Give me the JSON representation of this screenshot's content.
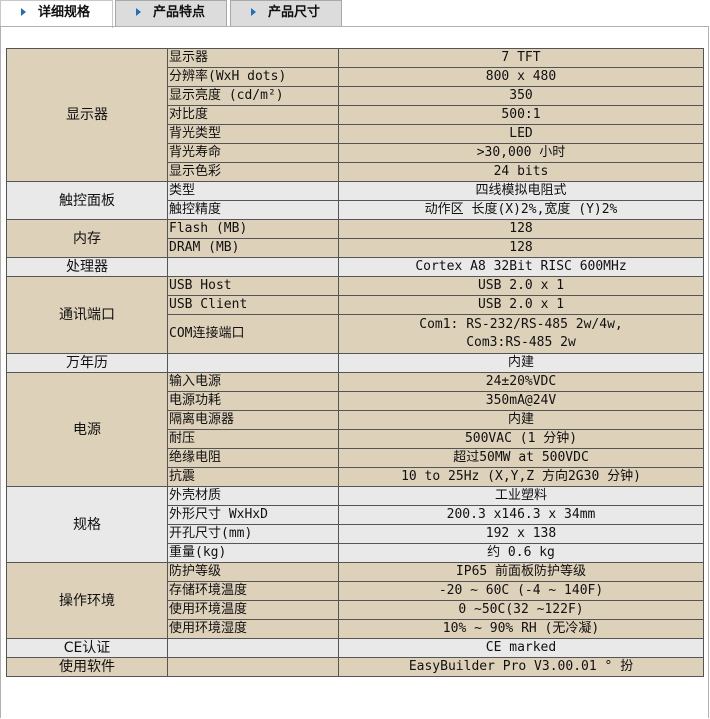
{
  "tabs": [
    {
      "label": "详细规格",
      "active": true
    },
    {
      "label": "产品特点",
      "active": false
    },
    {
      "label": "产品尺寸",
      "active": false
    }
  ],
  "colors": {
    "tan": "#ddd1ba",
    "gray": "#e9e9e9",
    "tab_arrow": "#1f6fbf"
  },
  "groups": [
    {
      "name": "显示器",
      "shade": "tan",
      "rows": [
        [
          "显示器",
          "7 TFT"
        ],
        [
          "分辨率(WxH dots)",
          "800 x 480"
        ],
        [
          "显示亮度 (cd/m²)",
          "350"
        ],
        [
          "对比度",
          "500:1"
        ],
        [
          "背光类型",
          "LED"
        ],
        [
          "背光寿命",
          ">30,000 小时"
        ],
        [
          "显示色彩",
          "24 bits"
        ]
      ]
    },
    {
      "name": "触控面板",
      "shade": "gray",
      "rows": [
        [
          "类型",
          "四线模拟电阻式"
        ],
        [
          "触控精度",
          "动作区 长度(X)2%,宽度 (Y)2%"
        ]
      ]
    },
    {
      "name": "内存",
      "shade": "tan",
      "rows": [
        [
          "Flash (MB)",
          "128"
        ],
        [
          "DRAM (MB)",
          "128"
        ]
      ]
    },
    {
      "name": "处理器",
      "shade": "gray",
      "rows": [
        [
          "",
          "Cortex A8 32Bit RISC 600MHz"
        ]
      ]
    },
    {
      "name": "通讯端口",
      "shade": "tan",
      "rows": [
        [
          "USB Host",
          "USB 2.0 x 1"
        ],
        [
          "USB Client",
          "USB 2.0 x 1"
        ],
        [
          "COM连接端口",
          "Com1: RS-232/RS-485 2w/4w,\nCom3:RS-485 2w"
        ]
      ]
    },
    {
      "name": "万年历",
      "shade": "gray",
      "rows": [
        [
          "",
          "内建"
        ]
      ]
    },
    {
      "name": "电源",
      "shade": "tan",
      "rows": [
        [
          "输入电源",
          "24±20%VDC"
        ],
        [
          "电源功耗",
          "350mA@24V"
        ],
        [
          "隔离电源器",
          "内建"
        ],
        [
          "耐压",
          "500VAC (1 分钟)"
        ],
        [
          "绝缘电阻",
          "超过50MW at 500VDC"
        ],
        [
          "抗震",
          "10 to 25Hz (X,Y,Z 方向2G30 分钟)"
        ]
      ]
    },
    {
      "name": "规格",
      "shade": "gray",
      "rows": [
        [
          "外壳材质",
          "工业塑料"
        ],
        [
          "外形尺寸 WxHxD",
          "200.3 x146.3 x 34mm"
        ],
        [
          "开孔尺寸(mm)",
          "192 x 138"
        ],
        [
          "重量(kg)",
          "约 0.6 kg"
        ]
      ]
    },
    {
      "name": "操作环境",
      "shade": "tan",
      "rows": [
        [
          "防护等级",
          "IP65 前面板防护等级"
        ],
        [
          "存储环境温度",
          "-20 ~ 60C (-4 ~ 140F)"
        ],
        [
          "使用环境温度",
          "0 ~50C(32 ~122F)"
        ],
        [
          "使用环境湿度",
          "10% ~ 90% RH (无冷凝)"
        ]
      ]
    },
    {
      "name": "CE认证",
      "shade": "gray",
      "rows": [
        [
          "",
          "CE marked"
        ]
      ]
    },
    {
      "name": "使用软件",
      "shade": "tan",
      "rows": [
        [
          "",
          "EasyBuilder Pro V3.00.01 ° 扮"
        ]
      ]
    }
  ]
}
